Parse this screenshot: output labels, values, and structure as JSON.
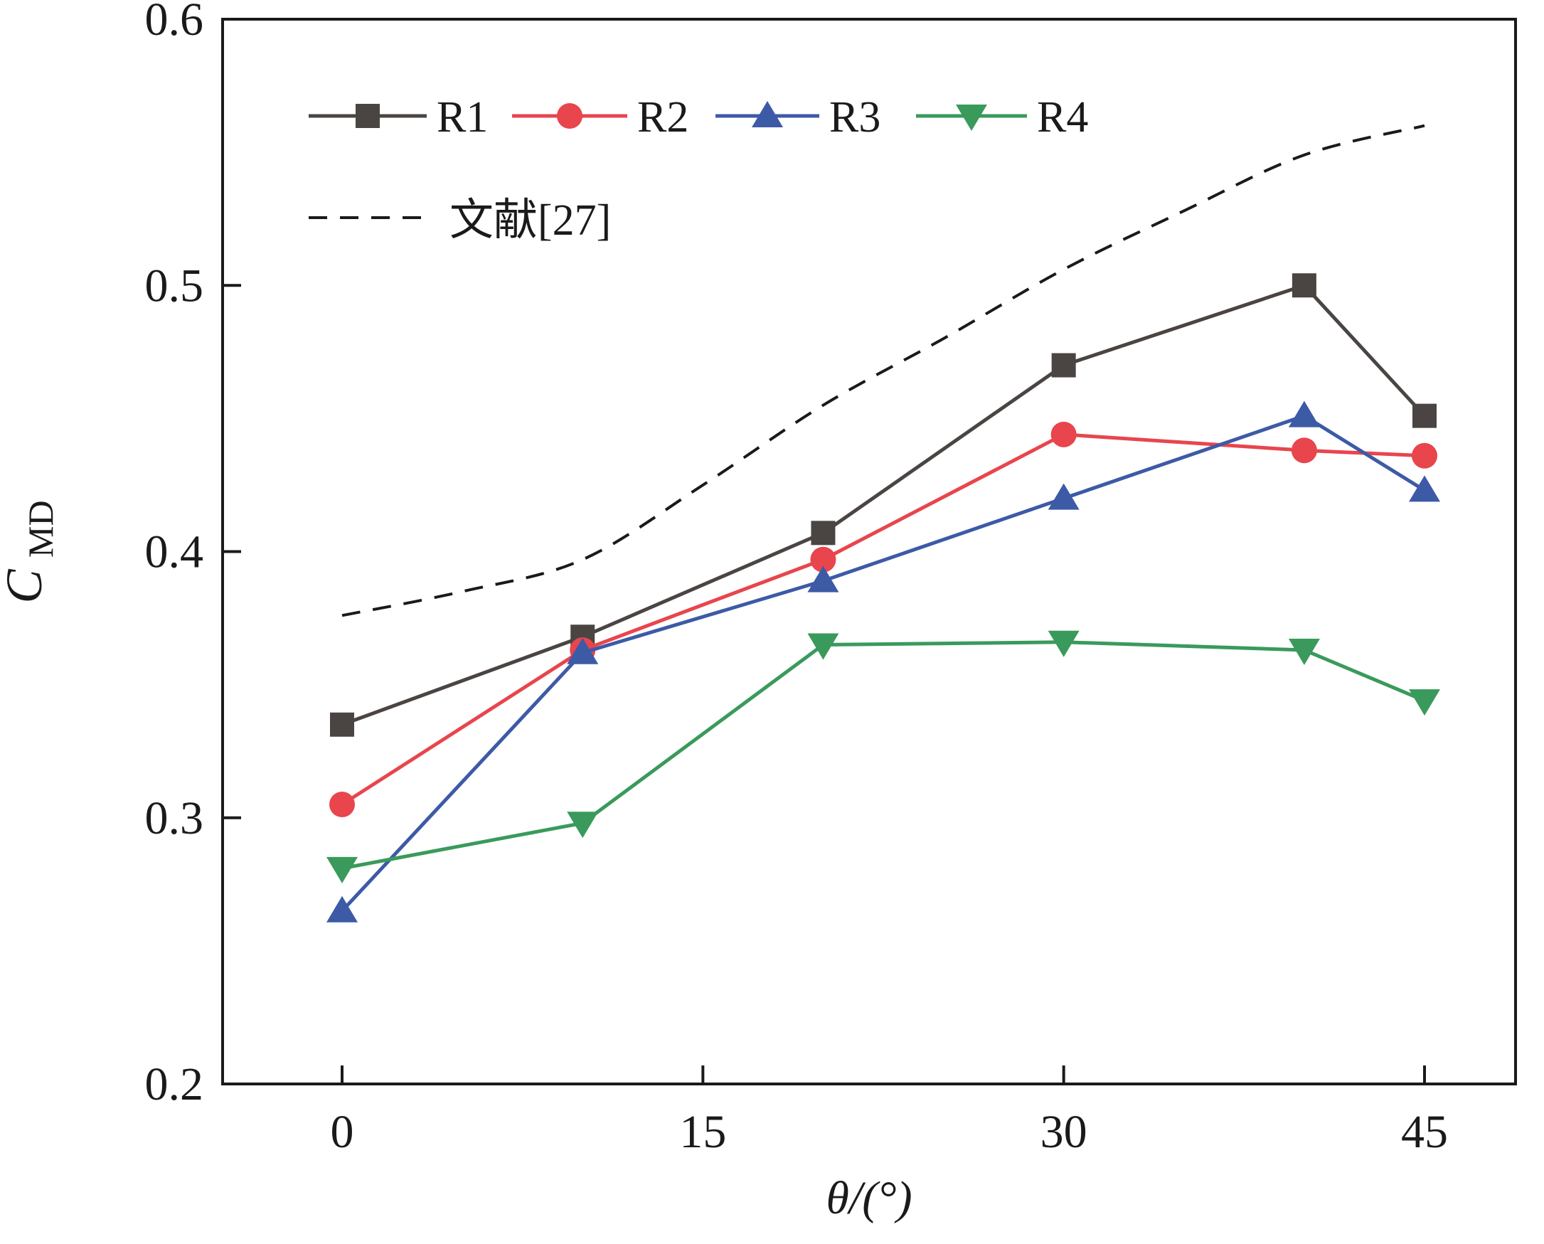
{
  "chart_data": {
    "type": "line",
    "title": "",
    "xlabel": "θ/(°)",
    "ylabel": "C",
    "ylabel_sub": "MD",
    "xlim": [
      -5,
      50
    ],
    "ylim": [
      0.2,
      0.6
    ],
    "xticks": [
      0,
      15,
      30,
      45
    ],
    "xtick_labels": [
      "0",
      "15",
      "30",
      "45"
    ],
    "yticks": [
      0.2,
      0.3,
      0.4,
      0.5,
      0.6
    ],
    "ytick_labels": [
      "0.2",
      "0.3",
      "0.4",
      "0.5",
      "0.6"
    ],
    "grid": false,
    "legend_position": "top-left",
    "x": [
      0,
      10,
      20,
      30,
      40,
      45
    ],
    "series": [
      {
        "name": "R1",
        "color": "#4a4542",
        "marker": "square",
        "values": [
          0.335,
          0.368,
          0.407,
          0.47,
          0.5,
          0.451
        ]
      },
      {
        "name": "R2",
        "color": "#e8454d",
        "marker": "circle",
        "values": [
          0.305,
          0.363,
          0.397,
          0.444,
          0.438,
          0.436
        ]
      },
      {
        "name": "R3",
        "color": "#3d5aa6",
        "marker": "triangle-up",
        "values": [
          0.265,
          0.362,
          0.389,
          0.42,
          0.451,
          0.423
        ]
      },
      {
        "name": "R4",
        "color": "#3a9a5b",
        "marker": "triangle-down",
        "values": [
          0.281,
          0.298,
          0.365,
          0.366,
          0.363,
          0.344
        ]
      }
    ],
    "reference": {
      "name": "文献[27]",
      "color": "#1a1a1a",
      "style": "dashed",
      "x": [
        0,
        5,
        10,
        15,
        20,
        25,
        30,
        35,
        40,
        45
      ],
      "values": [
        0.376,
        0.385,
        0.397,
        0.425,
        0.455,
        0.48,
        0.506,
        0.528,
        0.549,
        0.56
      ]
    }
  }
}
